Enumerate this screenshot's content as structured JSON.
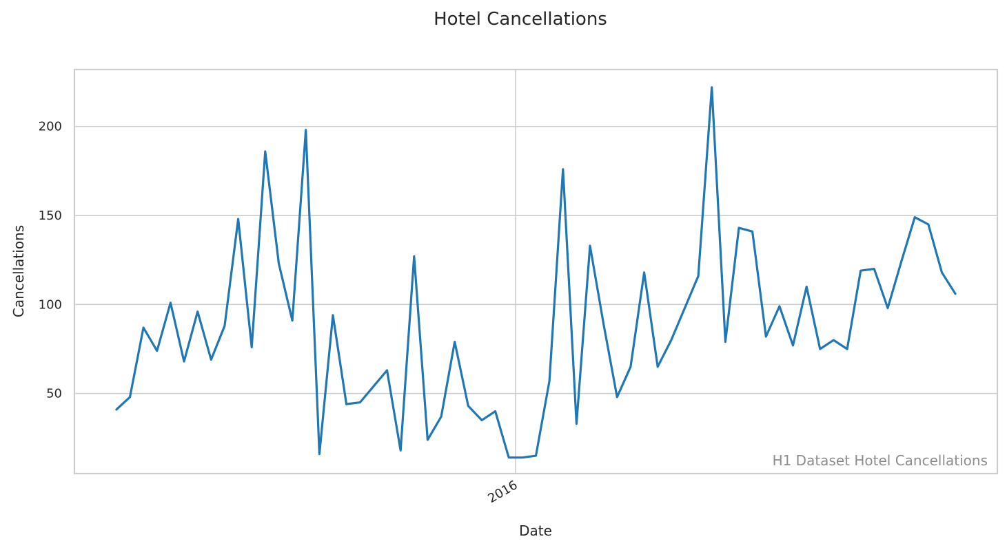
{
  "chart_data": {
    "type": "line",
    "title": "Hotel Cancellations",
    "xlabel": "Date",
    "ylabel": "Cancellations",
    "watermark": "H1 Dataset Hotel Cancellations",
    "color": "#1f77b4",
    "grid": true,
    "x_ticks": [
      {
        "label": "2016",
        "index": 29.5
      }
    ],
    "y_ticks": [
      50,
      100,
      150,
      200
    ],
    "ylim": [
      5,
      232
    ],
    "xlim": [
      -3.1,
      65.1
    ],
    "series": [
      {
        "values": [
          41,
          48,
          87,
          74,
          101,
          68,
          96,
          69,
          88,
          148,
          76,
          186,
          123,
          91,
          198,
          16,
          94,
          44,
          45,
          54,
          63,
          18,
          127,
          24,
          37,
          79,
          43,
          35,
          40,
          14,
          14,
          15,
          57,
          176,
          33,
          133,
          89,
          48,
          65,
          118,
          65,
          80,
          98,
          116,
          222,
          79,
          143,
          141,
          82,
          99,
          77,
          110,
          75,
          80,
          75,
          119,
          120,
          98,
          124,
          149,
          145,
          118,
          106
        ]
      }
    ]
  }
}
